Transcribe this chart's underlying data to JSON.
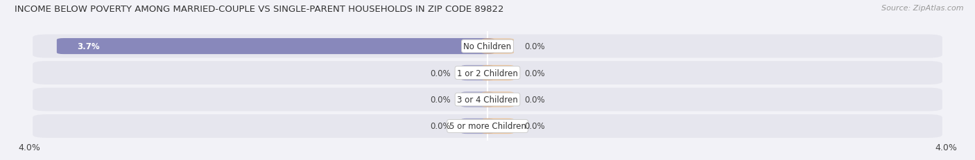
{
  "title": "INCOME BELOW POVERTY AMONG MARRIED-COUPLE VS SINGLE-PARENT HOUSEHOLDS IN ZIP CODE 89822",
  "source": "Source: ZipAtlas.com",
  "categories": [
    "No Children",
    "1 or 2 Children",
    "3 or 4 Children",
    "5 or more Children"
  ],
  "married_values": [
    3.7,
    0.0,
    0.0,
    0.0
  ],
  "single_values": [
    0.0,
    0.0,
    0.0,
    0.0
  ],
  "married_color": "#8888bb",
  "single_color": "#f0b87a",
  "background_color": "#f2f2f7",
  "row_color": "#e6e6ee",
  "row_color_alt": "#ebebf2",
  "xlim": 4.0,
  "title_fontsize": 9.5,
  "source_fontsize": 8.0,
  "label_fontsize": 8.5,
  "category_fontsize": 8.5,
  "legend_fontsize": 8.5,
  "axis_label_fontsize": 9.0,
  "min_bar_display": 0.18
}
